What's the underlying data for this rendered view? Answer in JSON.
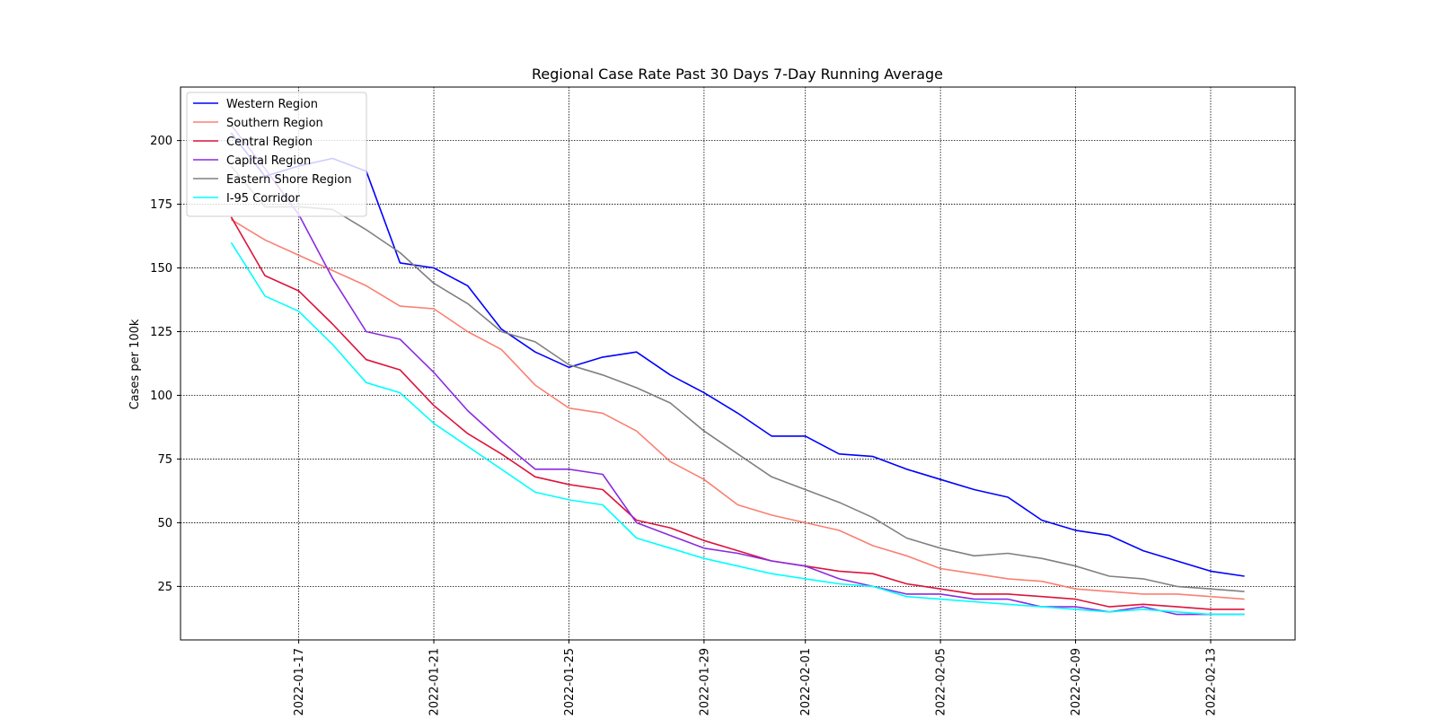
{
  "chart_data": {
    "type": "line",
    "title": "Regional Case Rate  Past 30 Days 7-Day Running Average",
    "xlabel": "",
    "ylabel": "Cases per 100k",
    "x": [
      "2022-01-15",
      "2022-01-16",
      "2022-01-17",
      "2022-01-18",
      "2022-01-19",
      "2022-01-20",
      "2022-01-21",
      "2022-01-22",
      "2022-01-23",
      "2022-01-24",
      "2022-01-25",
      "2022-01-26",
      "2022-01-27",
      "2022-01-28",
      "2022-01-29",
      "2022-01-30",
      "2022-01-31",
      "2022-02-01",
      "2022-02-02",
      "2022-02-03",
      "2022-02-04",
      "2022-02-05",
      "2022-02-06",
      "2022-02-07",
      "2022-02-08",
      "2022-02-09",
      "2022-02-10",
      "2022-02-11",
      "2022-02-12",
      "2022-02-13",
      "2022-02-14"
    ],
    "x_ticks": [
      "2022-01-17",
      "2022-01-21",
      "2022-01-25",
      "2022-01-29",
      "2022-02-01",
      "2022-02-05",
      "2022-02-09",
      "2022-02-13"
    ],
    "y_ticks": [
      25,
      50,
      75,
      100,
      125,
      150,
      175,
      200
    ],
    "ylim": [
      4,
      221
    ],
    "grid": true,
    "legend_position": "top-left",
    "series": [
      {
        "name": "Western Region",
        "color": "#0000ff",
        "values": [
          203,
          186,
          190,
          193,
          188,
          152,
          150,
          143,
          126,
          117,
          111,
          115,
          117,
          108,
          101,
          93,
          84,
          84,
          77,
          76,
          71,
          67,
          63,
          60,
          51,
          47,
          45,
          39,
          35,
          31,
          29
        ]
      },
      {
        "name": "Southern Region",
        "color": "#fa8072",
        "values": [
          169,
          161,
          155,
          149,
          143,
          135,
          134,
          125,
          118,
          104,
          95,
          93,
          86,
          74,
          67,
          57,
          53,
          50,
          47,
          41,
          37,
          32,
          30,
          28,
          27,
          24,
          23,
          22,
          22,
          21,
          20
        ]
      },
      {
        "name": "Central Region",
        "color": "#dc143c",
        "values": [
          170,
          147,
          141,
          128,
          114,
          110,
          96,
          85,
          77,
          68,
          65,
          63,
          51,
          48,
          43,
          39,
          35,
          33,
          31,
          30,
          26,
          24,
          22,
          22,
          21,
          20,
          17,
          18,
          17,
          16,
          16
        ]
      },
      {
        "name": "Capital Region",
        "color": "#8a2be2",
        "values": [
          206,
          189,
          171,
          146,
          125,
          122,
          109,
          94,
          82,
          71,
          71,
          69,
          50,
          45,
          40,
          38,
          35,
          33,
          28,
          25,
          22,
          22,
          20,
          20,
          17,
          17,
          15,
          17,
          14,
          14,
          14
        ]
      },
      {
        "name": "Eastern Shore Region",
        "color": "#808080",
        "values": [
          190,
          174,
          174,
          173,
          165,
          156,
          144,
          136,
          125,
          121,
          112,
          108,
          103,
          97,
          86,
          77,
          68,
          63,
          58,
          52,
          44,
          40,
          37,
          38,
          36,
          33,
          29,
          28,
          25,
          24,
          23
        ]
      },
      {
        "name": "I-95 Corridor",
        "color": "#00ffff",
        "values": [
          160,
          139,
          133,
          120,
          105,
          101,
          89,
          80,
          71,
          62,
          59,
          57,
          44,
          40,
          36,
          33,
          30,
          28,
          26,
          25,
          21,
          20,
          19,
          18,
          17,
          16,
          15,
          16,
          15,
          14,
          14
        ]
      }
    ]
  }
}
